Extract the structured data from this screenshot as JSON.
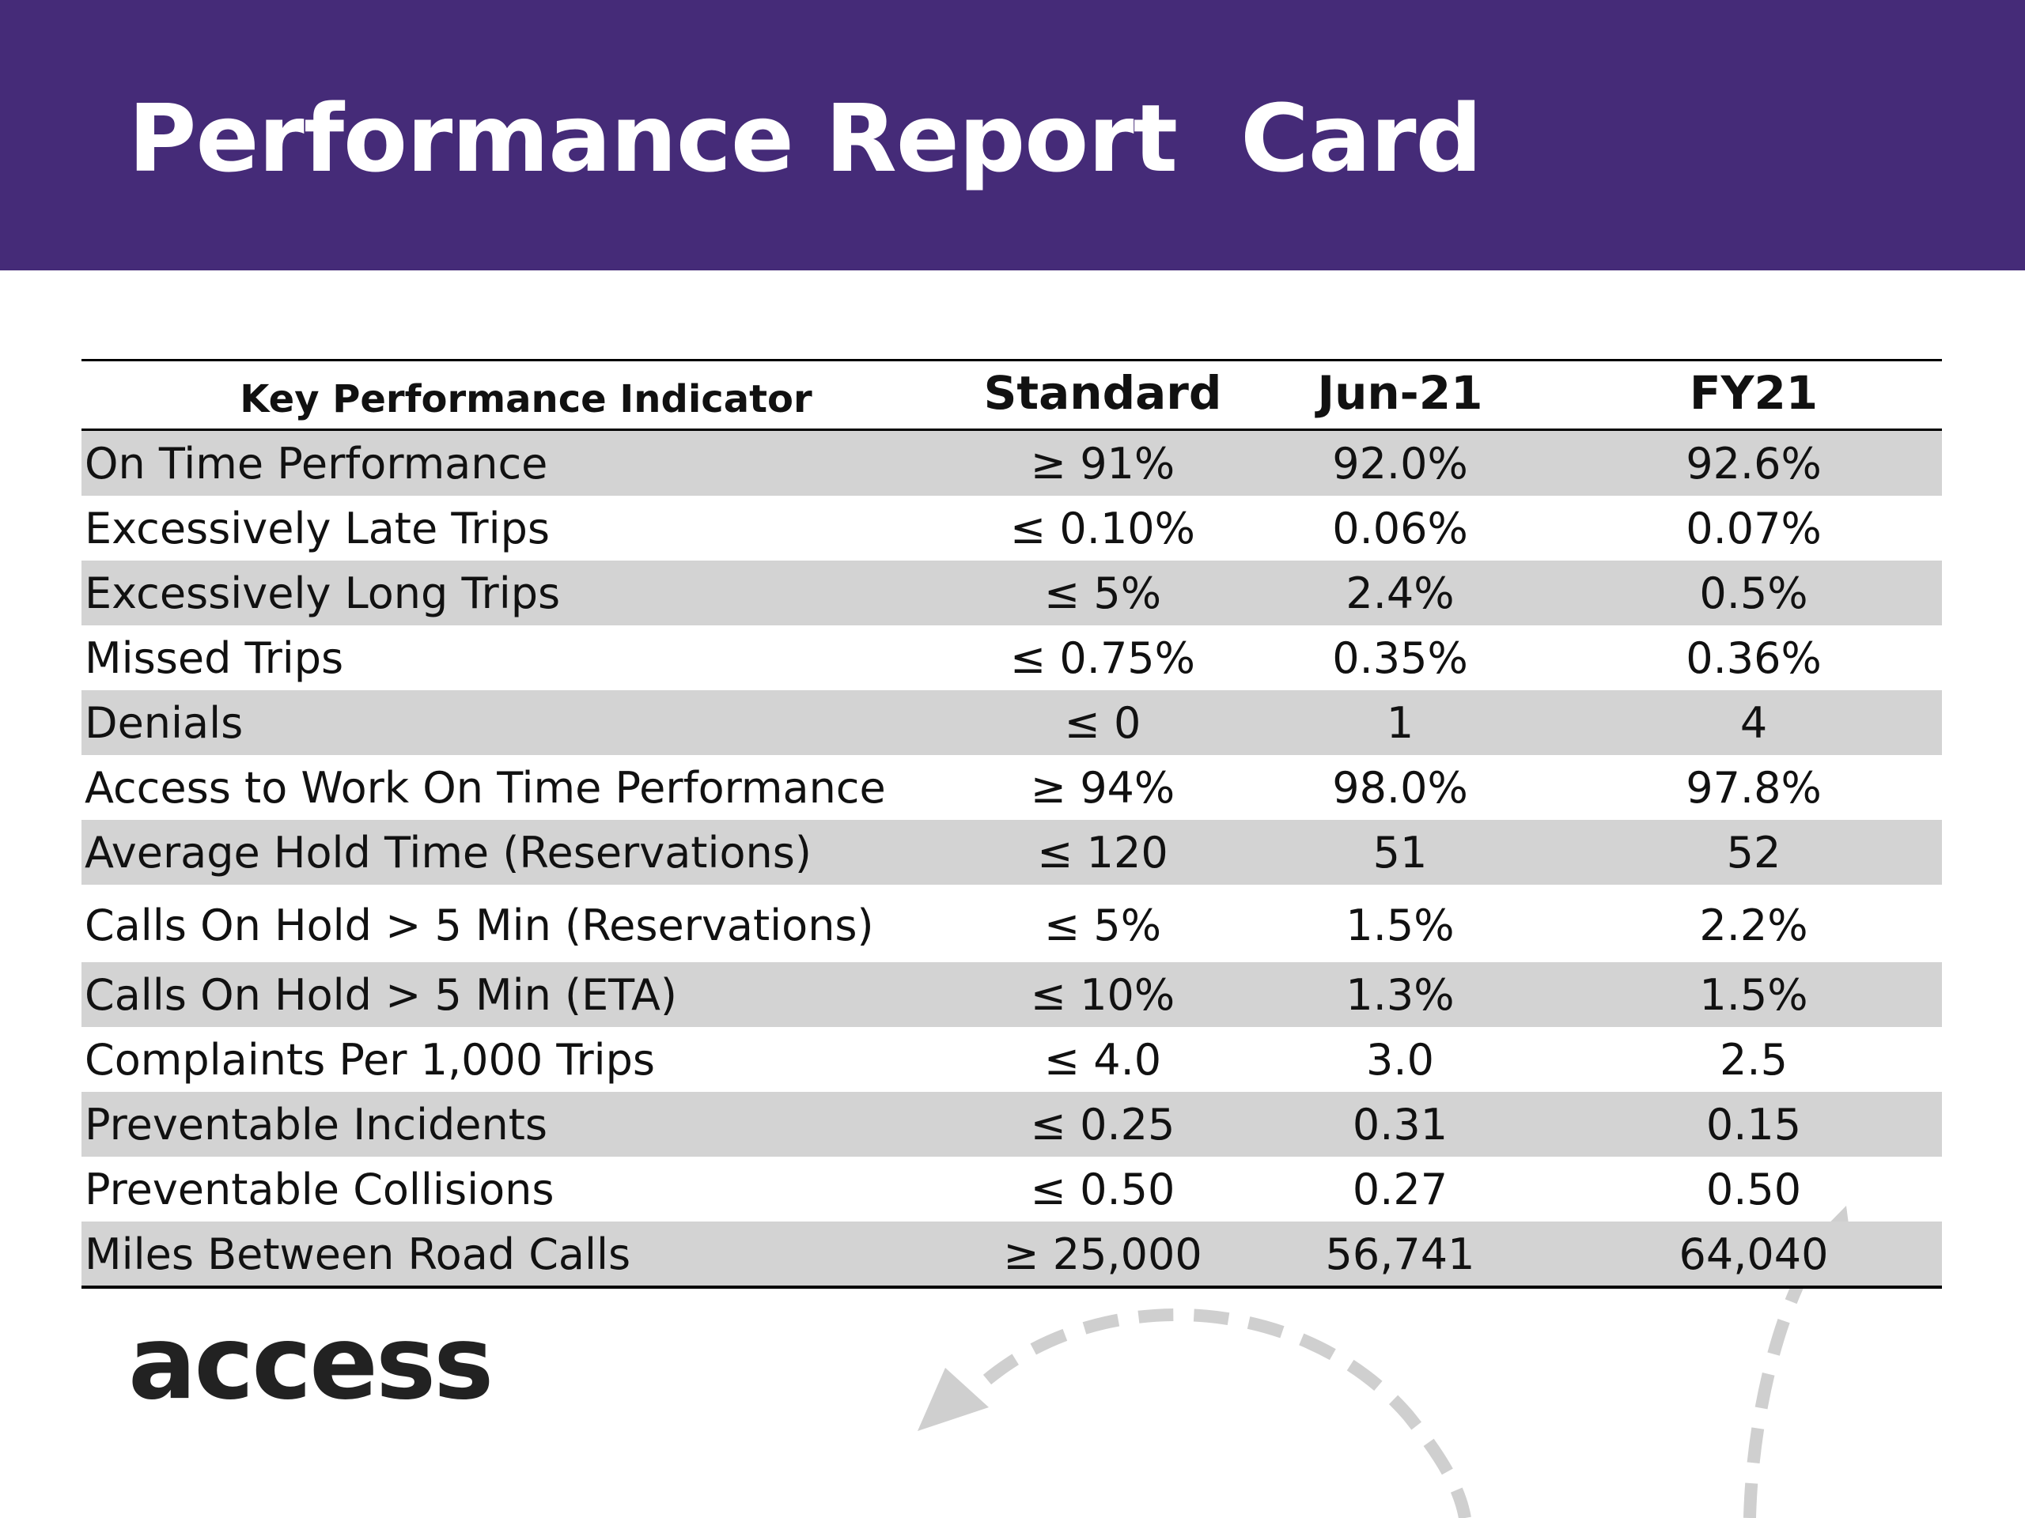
{
  "header": {
    "title": "Performance Report  Card"
  },
  "table": {
    "columns": [
      "Key Performance Indicator",
      "Standard",
      "Jun-21",
      "FY21"
    ],
    "rows": [
      {
        "kpi": "On Time Performance",
        "standard": "≥ 91%",
        "jun21": "92.0%",
        "fy21": "92.6%"
      },
      {
        "kpi": "Excessively Late Trips",
        "standard": "≤ 0.10%",
        "jun21": "0.06%",
        "fy21": "0.07%"
      },
      {
        "kpi": "Excessively Long Trips",
        "standard": "≤ 5%",
        "jun21": "2.4%",
        "fy21": "0.5%"
      },
      {
        "kpi": "Missed Trips",
        "standard": "≤ 0.75%",
        "jun21": "0.35%",
        "fy21": "0.36%"
      },
      {
        "kpi": "Denials",
        "standard": "≤ 0",
        "jun21": "1",
        "fy21": "4"
      },
      {
        "kpi": "Access to Work On Time Performance",
        "standard": "≥ 94%",
        "jun21": "98.0%",
        "fy21": "97.8%"
      },
      {
        "kpi": "Average Hold Time (Reservations)",
        "standard": "≤ 120",
        "jun21": "51",
        "fy21": "52"
      },
      {
        "kpi": "Calls On Hold > 5 Min (Reservations)",
        "standard": "≤ 5%",
        "jun21": "1.5%",
        "fy21": "2.2%"
      },
      {
        "kpi": "Calls On Hold > 5 Min (ETA)",
        "standard": "≤ 10%",
        "jun21": "1.3%",
        "fy21": "1.5%"
      },
      {
        "kpi": "Complaints Per 1,000 Trips",
        "standard": "≤ 4.0",
        "jun21": "3.0",
        "fy21": "2.5"
      },
      {
        "kpi": "Preventable Incidents",
        "standard": "≤ 0.25",
        "jun21": "0.31",
        "fy21": "0.15"
      },
      {
        "kpi": "Preventable Collisions",
        "standard": "≤ 0.50",
        "jun21": "0.27",
        "fy21": "0.50"
      },
      {
        "kpi": "Miles Between Road Calls",
        "standard": "≥ 25,000",
        "jun21": "56,741",
        "fy21": "64,040"
      }
    ]
  },
  "logo": {
    "text": "access"
  },
  "colors": {
    "header_bg": "#452b78",
    "row_shade": "#d3d3d3",
    "arrow": "#cfcfcf"
  }
}
